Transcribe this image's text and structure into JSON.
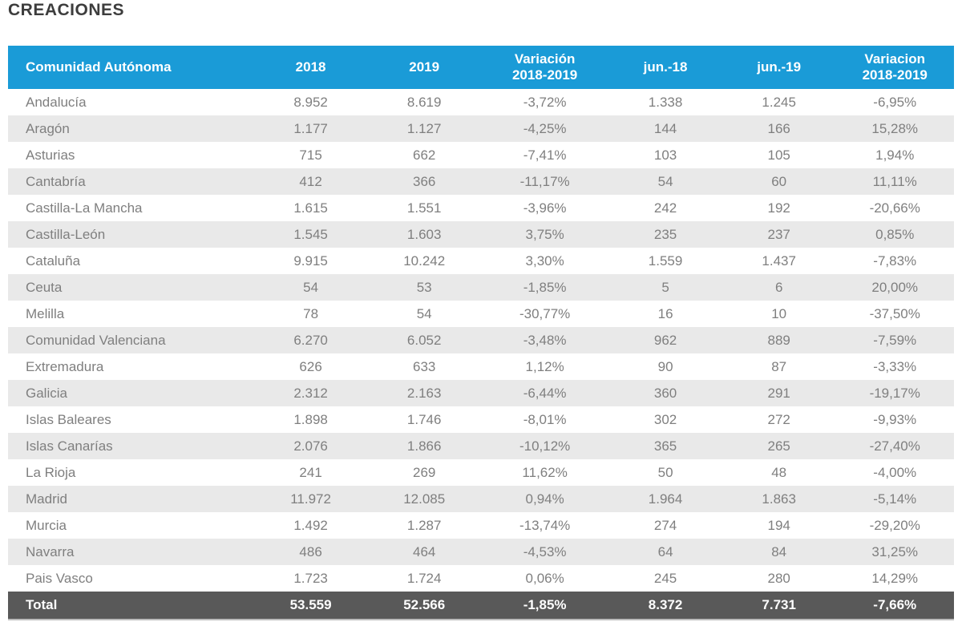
{
  "title": "CREACIONES",
  "colors": {
    "header_bg": "#1A9BD7",
    "header_text": "#FFFFFF",
    "stripe_bg": "#E9E9E9",
    "row_text": "#7F7F7F",
    "total_bg": "#595959",
    "total_text": "#FFFFFF",
    "title_text": "#3D3D3D"
  },
  "table": {
    "columns": [
      "Comunidad Autónoma",
      "2018",
      "2019",
      "Variación\n2018-2019",
      "jun.-18",
      "jun.-19",
      "Variacion\n2018-2019"
    ],
    "rows": [
      [
        "Andalucía",
        "8.952",
        "8.619",
        "-3,72%",
        "1.338",
        "1.245",
        "-6,95%"
      ],
      [
        "Aragón",
        "1.177",
        "1.127",
        "-4,25%",
        "144",
        "166",
        "15,28%"
      ],
      [
        "Asturias",
        "715",
        "662",
        "-7,41%",
        "103",
        "105",
        "1,94%"
      ],
      [
        "Cantabría",
        "412",
        "366",
        "-11,17%",
        "54",
        "60",
        "11,11%"
      ],
      [
        "Castilla-La Mancha",
        "1.615",
        "1.551",
        "-3,96%",
        "242",
        "192",
        "-20,66%"
      ],
      [
        "Castilla-León",
        "1.545",
        "1.603",
        "3,75%",
        "235",
        "237",
        "0,85%"
      ],
      [
        "Cataluña",
        "9.915",
        "10.242",
        "3,30%",
        "1.559",
        "1.437",
        "-7,83%"
      ],
      [
        "Ceuta",
        "54",
        "53",
        "-1,85%",
        "5",
        "6",
        "20,00%"
      ],
      [
        "Melilla",
        "78",
        "54",
        "-30,77%",
        "16",
        "10",
        "-37,50%"
      ],
      [
        "Comunidad Valenciana",
        "6.270",
        "6.052",
        "-3,48%",
        "962",
        "889",
        "-7,59%"
      ],
      [
        "Extremadura",
        "626",
        "633",
        "1,12%",
        "90",
        "87",
        "-3,33%"
      ],
      [
        "Galicia",
        "2.312",
        "2.163",
        "-6,44%",
        "360",
        "291",
        "-19,17%"
      ],
      [
        "Islas Baleares",
        "1.898",
        "1.746",
        "-8,01%",
        "302",
        "272",
        "-9,93%"
      ],
      [
        "Islas Canarías",
        "2.076",
        "1.866",
        "-10,12%",
        "365",
        "265",
        "-27,40%"
      ],
      [
        "La Rioja",
        "241",
        "269",
        "11,62%",
        "50",
        "48",
        "-4,00%"
      ],
      [
        "Madrid",
        "11.972",
        "12.085",
        "0,94%",
        "1.964",
        "1.863",
        "-5,14%"
      ],
      [
        "Murcia",
        "1.492",
        "1.287",
        "-13,74%",
        "274",
        "194",
        "-29,20%"
      ],
      [
        "Navarra",
        "486",
        "464",
        "-4,53%",
        "64",
        "84",
        "31,25%"
      ],
      [
        "Pais Vasco",
        "1.723",
        "1.724",
        "0,06%",
        "245",
        "280",
        "14,29%"
      ]
    ],
    "total": [
      "Total",
      "53.559",
      "52.566",
      "-1,85%",
      "8.372",
      "7.731",
      "-7,66%"
    ]
  },
  "chart_data": {
    "type": "table",
    "title": "CREACIONES",
    "columns": [
      "Comunidad Autónoma",
      "2018",
      "2019",
      "Variación 2018-2019",
      "jun.-18",
      "jun.-19",
      "Variacion 2018-2019"
    ],
    "categories": [
      "Andalucía",
      "Aragón",
      "Asturias",
      "Cantabría",
      "Castilla-La Mancha",
      "Castilla-León",
      "Cataluña",
      "Ceuta",
      "Melilla",
      "Comunidad Valenciana",
      "Extremadura",
      "Galicia",
      "Islas Baleares",
      "Islas Canarías",
      "La Rioja",
      "Madrid",
      "Murcia",
      "Navarra",
      "Pais Vasco"
    ],
    "series": [
      {
        "name": "2018",
        "values": [
          8952,
          1177,
          715,
          412,
          1615,
          1545,
          9915,
          54,
          78,
          6270,
          626,
          2312,
          1898,
          2076,
          241,
          11972,
          1492,
          486,
          1723
        ]
      },
      {
        "name": "2019",
        "values": [
          8619,
          1127,
          662,
          366,
          1551,
          1603,
          10242,
          53,
          54,
          6052,
          633,
          2163,
          1746,
          1866,
          269,
          12085,
          1287,
          464,
          1724
        ]
      },
      {
        "name": "Variación 2018-2019 (%)",
        "values": [
          -3.72,
          -4.25,
          -7.41,
          -11.17,
          -3.96,
          3.75,
          3.3,
          -1.85,
          -30.77,
          -3.48,
          1.12,
          -6.44,
          -8.01,
          -10.12,
          11.62,
          0.94,
          -13.74,
          -4.53,
          0.06
        ]
      },
      {
        "name": "jun.-18",
        "values": [
          1338,
          144,
          103,
          54,
          242,
          235,
          1559,
          5,
          16,
          962,
          90,
          360,
          302,
          365,
          50,
          1964,
          274,
          64,
          245
        ]
      },
      {
        "name": "jun.-19",
        "values": [
          1245,
          166,
          105,
          60,
          192,
          237,
          1437,
          6,
          10,
          889,
          87,
          291,
          272,
          265,
          48,
          1863,
          194,
          84,
          280
        ]
      },
      {
        "name": "Variacion 2018-2019 (%)",
        "values": [
          -6.95,
          15.28,
          1.94,
          11.11,
          -20.66,
          0.85,
          -7.83,
          20.0,
          -37.5,
          -7.59,
          -3.33,
          -19.17,
          -9.93,
          -27.4,
          -4.0,
          -5.14,
          -29.2,
          31.25,
          14.29
        ]
      }
    ],
    "totals": {
      "2018": 53559,
      "2019": 52566,
      "variacion_pct": -1.85,
      "jun_18": 8372,
      "jun_19": 7731,
      "variacion_jun_pct": -7.66
    }
  }
}
